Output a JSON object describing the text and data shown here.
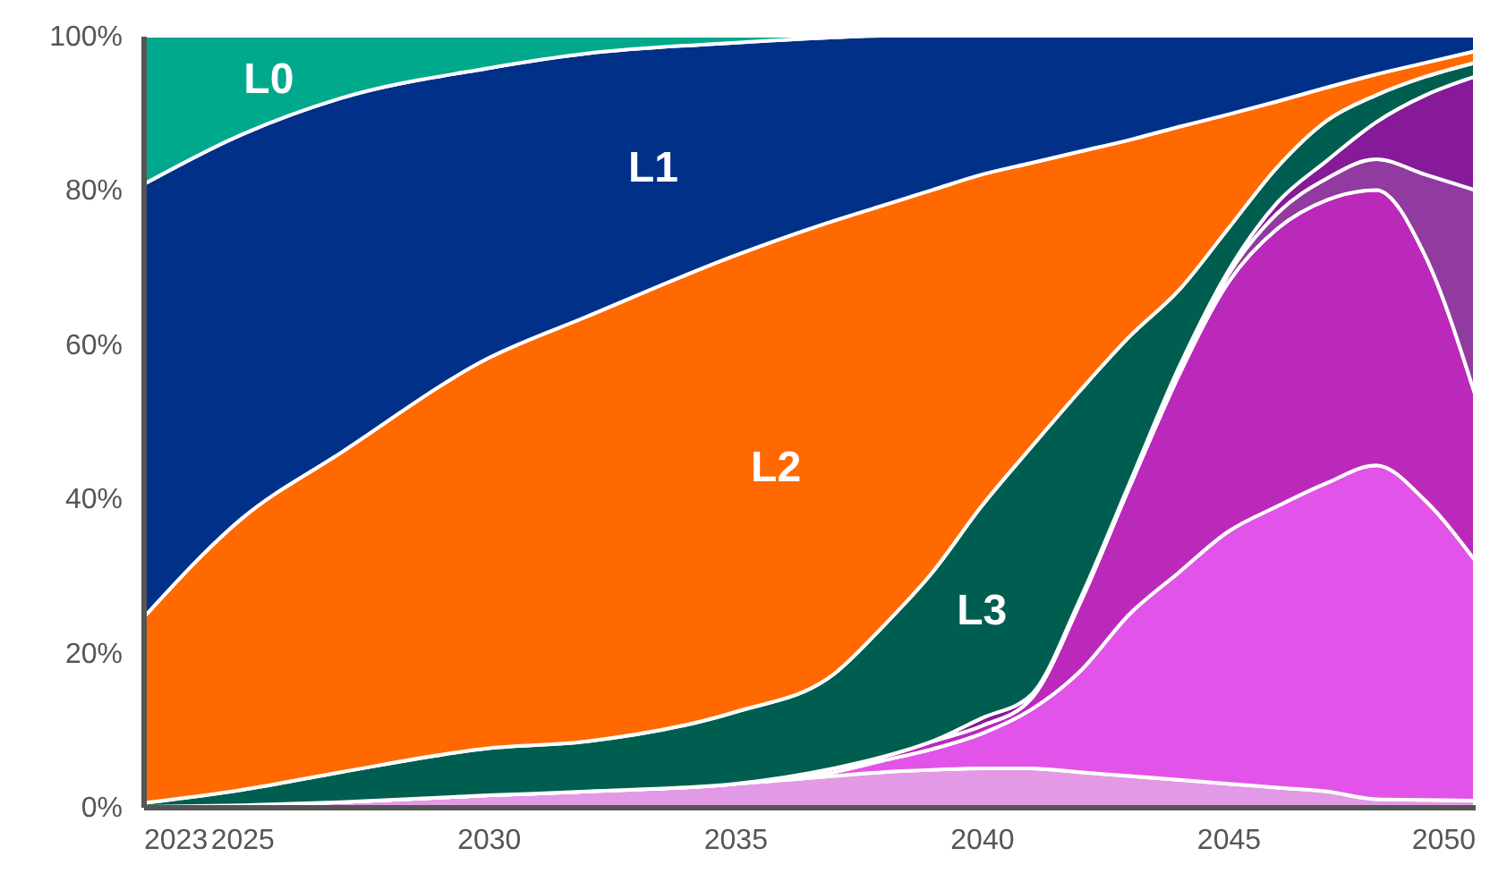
{
  "chart_data": {
    "type": "area",
    "stacked": true,
    "x": [
      2023,
      2025,
      2027,
      2030,
      2032,
      2035,
      2037,
      2038,
      2039,
      2040,
      2041,
      2042,
      2043,
      2044,
      2045,
      2046,
      2047,
      2048,
      2049,
      2050
    ],
    "xlim": [
      2023,
      2050
    ],
    "xticks": [
      2023,
      2025,
      2030,
      2035,
      2040,
      2045,
      2050
    ],
    "ylim": [
      0,
      100
    ],
    "yticks": [
      {
        "value": 0,
        "label": "0%"
      },
      {
        "value": 20,
        "label": "20%"
      },
      {
        "value": 40,
        "label": "40%"
      },
      {
        "value": 60,
        "label": "60%"
      },
      {
        "value": 80,
        "label": "80%"
      },
      {
        "value": 100,
        "label": "100%"
      }
    ],
    "series": [
      {
        "color": "#e39ae6",
        "values": [
          0,
          0.2,
          0.6,
          1.5,
          2,
          3,
          4,
          4.5,
          4.8,
          5,
          5,
          4.5,
          4,
          3.5,
          3,
          2.5,
          2,
          1,
          0.9,
          0.8
        ]
      },
      {
        "color": "#e254e9",
        "values": [
          0,
          0,
          0,
          0,
          0,
          0,
          0.5,
          1.5,
          2.7,
          4.5,
          7.6,
          13.1,
          21,
          26.9,
          32.7,
          36.5,
          40,
          43.3,
          38.8,
          31.2
        ]
      },
      {
        "color": "#bb29bb",
        "values": [
          0,
          0,
          0,
          0,
          0,
          0,
          0.5,
          0.5,
          1,
          1,
          1.4,
          8.9,
          16.5,
          25.6,
          32.3,
          36,
          36.7,
          35.7,
          31.7,
          21.6
        ]
      },
      {
        "color": "#913a9f",
        "values": [
          0,
          0,
          0,
          0,
          0,
          0,
          0,
          0,
          0,
          0,
          0,
          0,
          0,
          0,
          1,
          2,
          2.8,
          4,
          10.6,
          26.4
        ]
      },
      {
        "color": "#861a98",
        "values": [
          0,
          0,
          0,
          0,
          0,
          0,
          0,
          0,
          0,
          1,
          0.5,
          0.5,
          0.5,
          1,
          0.5,
          1.4,
          2.3,
          4.8,
          10.3,
          14.7
        ]
      },
      {
        "name": "L3",
        "color": "#005e50",
        "values": [
          0.5,
          2,
          3.9,
          6.1,
          6.5,
          9.3,
          12.2,
          16.9,
          21.9,
          27.5,
          32.1,
          27,
          19,
          10,
          5.5,
          4.6,
          5.2,
          3.5,
          2.4,
          1.8
        ]
      },
      {
        "name": "L2",
        "color": "#ff6900",
        "values": [
          24,
          35.2,
          41.4,
          50.6,
          55.1,
          59.2,
          58.8,
          54.6,
          49.6,
          43,
          36.9,
          31,
          25.5,
          21.2,
          14.8,
          8.5,
          4.3,
          2.7,
          1.8,
          1.5
        ]
      },
      {
        "name": "L1",
        "color": "#003087",
        "values": [
          56.2,
          49.8,
          46,
          37.6,
          34.1,
          27.6,
          23.8,
          22,
          20,
          18,
          16.5,
          15,
          13.5,
          11.8,
          10.2,
          8.5,
          6.7,
          5,
          3.5,
          2
        ]
      },
      {
        "name": "L0",
        "color": "#00a88c",
        "values": [
          19.3,
          12.8,
          8.1,
          4.2,
          2.3,
          0.9,
          0.2,
          0,
          0,
          0,
          0,
          0,
          0,
          0,
          0,
          0,
          0,
          0,
          0,
          0
        ]
      }
    ]
  }
}
